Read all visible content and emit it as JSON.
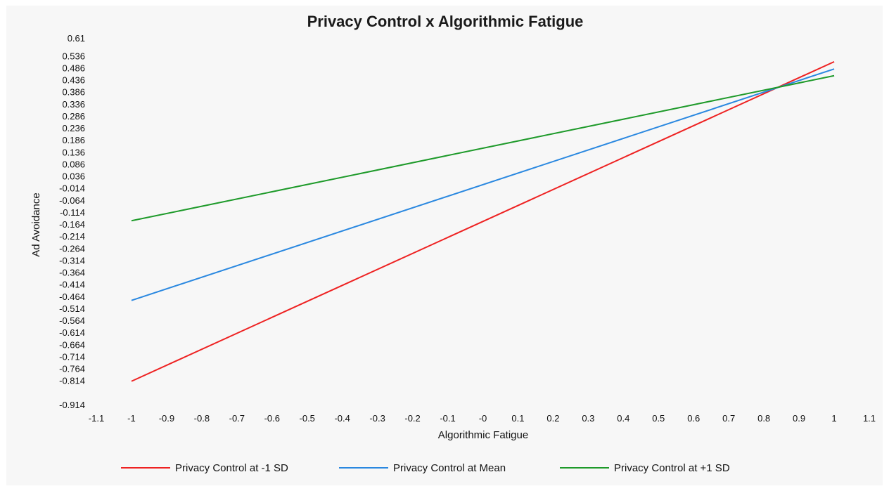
{
  "chart_data": {
    "type": "line",
    "title": "Privacy Control x Algorithmic Fatigue",
    "xlabel": "Algorithmic Fatigue",
    "ylabel": "Ad Avoidance",
    "xlim": [
      -1.1,
      1.1
    ],
    "ylim": [
      -0.914,
      0.61
    ],
    "x_ticks": [
      "-1.1",
      "-1",
      "-0.9",
      "-0.8",
      "-0.7",
      "-0.6",
      "-0.5",
      "-0.4",
      "-0.3",
      "-0.2",
      "-0.1",
      "-0",
      "0.1",
      "0.2",
      "0.3",
      "0.4",
      "0.5",
      "0.6",
      "0.7",
      "0.8",
      "0.9",
      "1",
      "1.1"
    ],
    "y_ticks": [
      "0.61",
      "0.536",
      "0.486",
      "0.436",
      "0.386",
      "0.336",
      "0.286",
      "0.236",
      "0.186",
      "0.136",
      "0.086",
      "0.036",
      "-0.014",
      "-0.064",
      "-0.114",
      "-0.164",
      "-0.214",
      "-0.264",
      "-0.314",
      "-0.364",
      "-0.414",
      "-0.464",
      "-0.514",
      "-0.564",
      "-0.614",
      "-0.664",
      "-0.714",
      "-0.764",
      "-0.814",
      "-0.914"
    ],
    "grid": false,
    "legend_position": "bottom",
    "series": [
      {
        "name": "Privacy Control at -1 SD",
        "color": "#ee2222",
        "x": [
          -1,
          1
        ],
        "y": [
          -0.814,
          0.514
        ]
      },
      {
        "name": "Privacy Control at Mean",
        "color": "#2a88e0",
        "x": [
          -1,
          1
        ],
        "y": [
          -0.478,
          0.484
        ]
      },
      {
        "name": "Privacy Control at +1 SD",
        "color": "#1e9a2a",
        "x": [
          -1,
          1
        ],
        "y": [
          -0.147,
          0.456
        ]
      }
    ]
  }
}
